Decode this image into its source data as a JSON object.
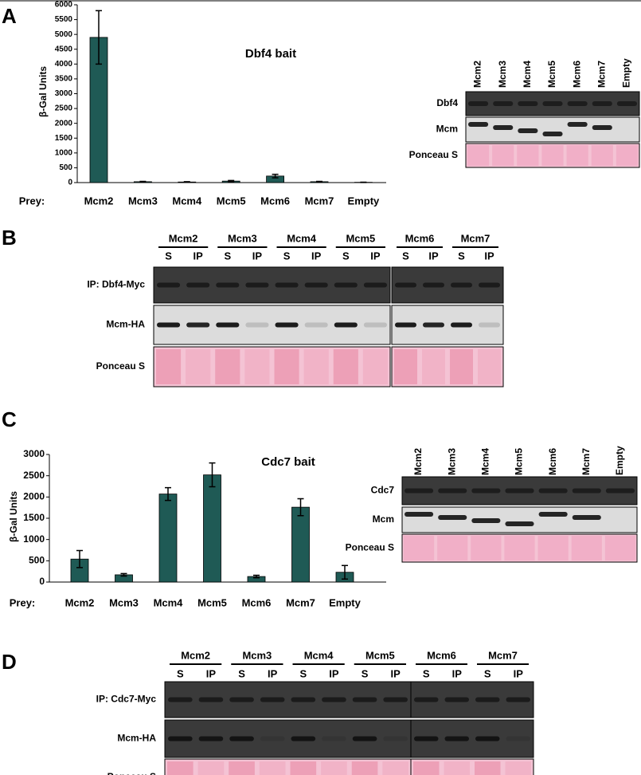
{
  "panel_labels": [
    "A",
    "B",
    "C",
    "D"
  ],
  "chart_data": [
    {
      "type": "bar",
      "title": "Dbf4 bait",
      "ylabel": "β-Gal Units",
      "xlabel": "Prey:",
      "categories": [
        "Mcm2",
        "Mcm3",
        "Mcm4",
        "Mcm5",
        "Mcm6",
        "Mcm7",
        "Empty"
      ],
      "values": [
        4900,
        30,
        20,
        50,
        220,
        30,
        10
      ],
      "errors": [
        900,
        10,
        10,
        20,
        60,
        10,
        5
      ],
      "ylim": [
        0,
        6000
      ],
      "yticks": [
        0,
        500,
        1000,
        1500,
        2000,
        2500,
        3000,
        3500,
        4000,
        4500,
        5000,
        5500,
        6000
      ],
      "color": "#1f5a55"
    },
    {
      "type": "bar",
      "title": "Cdc7 bait",
      "ylabel": "β-Gal Units",
      "xlabel": "Prey:",
      "categories": [
        "Mcm2",
        "Mcm3",
        "Mcm4",
        "Mcm5",
        "Mcm6",
        "Mcm7",
        "Empty"
      ],
      "values": [
        540,
        170,
        2070,
        2520,
        130,
        1760,
        230
      ],
      "errors": [
        200,
        30,
        150,
        280,
        30,
        200,
        160
      ],
      "ylim": [
        0,
        3000
      ],
      "yticks": [
        0,
        500,
        1000,
        1500,
        2000,
        2500,
        3000
      ],
      "color": "#1f5a55"
    }
  ],
  "blots": [
    {
      "columns": [
        "Mcm2",
        "Mcm3",
        "Mcm4",
        "Mcm5",
        "Mcm6",
        "Mcm7",
        "Empty"
      ],
      "rows": [
        "Dbf4",
        "Mcm",
        "Ponceau S"
      ]
    },
    {
      "groups": [
        "Mcm2",
        "Mcm3",
        "Mcm4",
        "Mcm5",
        "Mcm6",
        "Mcm7"
      ],
      "lanes": [
        "S",
        "IP"
      ],
      "rows": [
        "IP: Dbf4-Myc",
        "Mcm-HA",
        "Ponceau S"
      ]
    },
    {
      "columns": [
        "Mcm2",
        "Mcm3",
        "Mcm4",
        "Mcm5",
        "Mcm6",
        "Mcm7",
        "Empty"
      ],
      "rows": [
        "Cdc7",
        "Mcm",
        "Ponceau S"
      ]
    },
    {
      "groups": [
        "Mcm2",
        "Mcm3",
        "Mcm4",
        "Mcm5",
        "Mcm6",
        "Mcm7"
      ],
      "lanes": [
        "S",
        "IP"
      ],
      "rows": [
        "IP: Cdc7-Myc",
        "Mcm-HA",
        "Ponceau S"
      ]
    }
  ]
}
